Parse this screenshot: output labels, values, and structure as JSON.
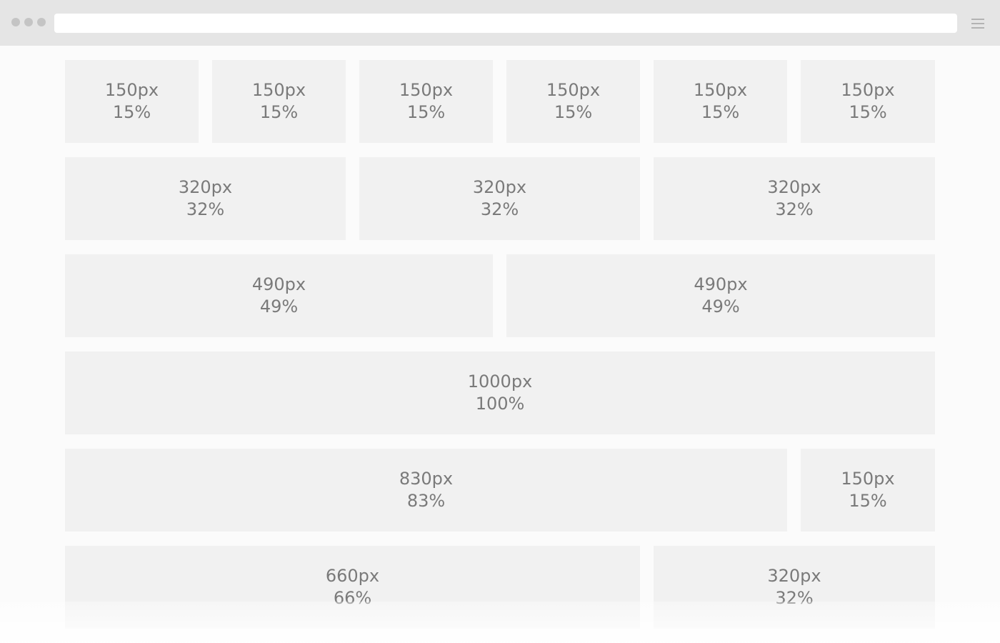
{
  "browser": {
    "controls": [
      "dot",
      "dot",
      "dot"
    ],
    "address_bar_value": "",
    "menu_icon": "hamburger-menu-icon"
  },
  "rows": [
    {
      "cells": [
        {
          "px": "150px",
          "pct": "15%"
        },
        {
          "px": "150px",
          "pct": "15%"
        },
        {
          "px": "150px",
          "pct": "15%"
        },
        {
          "px": "150px",
          "pct": "15%"
        },
        {
          "px": "150px",
          "pct": "15%"
        },
        {
          "px": "150px",
          "pct": "15%"
        }
      ]
    },
    {
      "cells": [
        {
          "px": "320px",
          "pct": "32%"
        },
        {
          "px": "320px",
          "pct": "32%"
        },
        {
          "px": "320px",
          "pct": "32%"
        }
      ]
    },
    {
      "cells": [
        {
          "px": "490px",
          "pct": "49%"
        },
        {
          "px": "490px",
          "pct": "49%"
        }
      ]
    },
    {
      "cells": [
        {
          "px": "1000px",
          "pct": "100%"
        }
      ]
    },
    {
      "cells": [
        {
          "px": "830px",
          "pct": "83%"
        },
        {
          "px": "150px",
          "pct": "15%"
        }
      ]
    },
    {
      "cells": [
        {
          "px": "660px",
          "pct": "66%"
        },
        {
          "px": "320px",
          "pct": "32%"
        }
      ]
    }
  ]
}
